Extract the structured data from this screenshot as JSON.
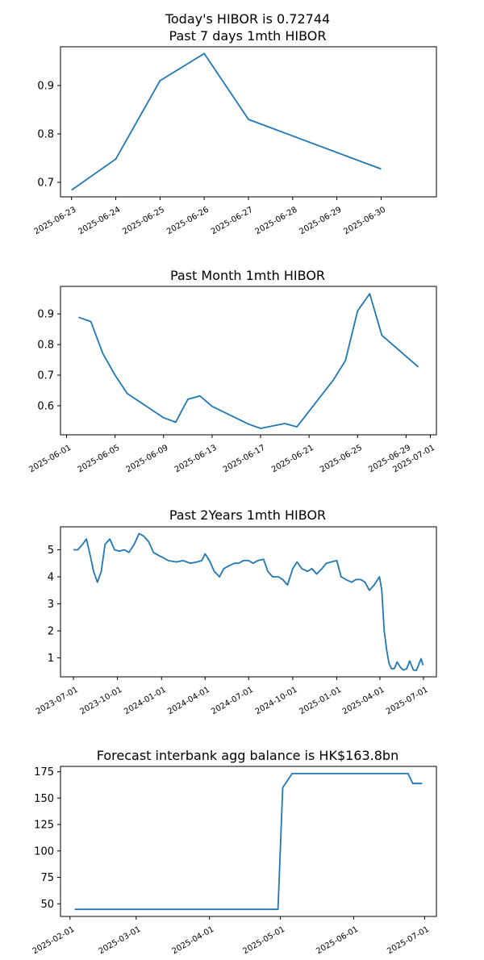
{
  "colors": {
    "line": "#1f77b4"
  },
  "chart_data": [
    {
      "type": "line",
      "title": "Today's HIBOR is 0.72744\nPast 7 days 1mth HIBOR",
      "x": [
        "2025-06-23",
        "2025-06-24",
        "2025-06-25",
        "2025-06-26",
        "2025-06-27",
        "2025-06-30"
      ],
      "values": [
        0.684,
        0.748,
        0.91,
        0.966,
        0.83,
        0.72744
      ],
      "xlim": [
        "2025-06-22T18:00",
        "2025-07-01T06:00"
      ],
      "ylim": [
        0.67,
        0.98
      ],
      "yticks": [
        0.7,
        0.8,
        0.9
      ],
      "ytick_labels": [
        "0.7",
        "0.8",
        "0.9"
      ],
      "xticks": [
        "2025-06-23",
        "2025-06-24",
        "2025-06-25",
        "2025-06-26",
        "2025-06-27",
        "2025-06-28",
        "2025-06-29",
        "2025-06-30"
      ],
      "xlabel": "",
      "ylabel": "",
      "grid": false
    },
    {
      "type": "line",
      "title": "Past Month 1mth HIBOR",
      "x": [
        "2025-06-02",
        "2025-06-03",
        "2025-06-04",
        "2025-06-05",
        "2025-06-06",
        "2025-06-09",
        "2025-06-10",
        "2025-06-11",
        "2025-06-12",
        "2025-06-13",
        "2025-06-16",
        "2025-06-17",
        "2025-06-19",
        "2025-06-20",
        "2025-06-23",
        "2025-06-24",
        "2025-06-25",
        "2025-06-26",
        "2025-06-27",
        "2025-06-30"
      ],
      "values": [
        0.889,
        0.875,
        0.77,
        0.7,
        0.64,
        0.561,
        0.546,
        0.621,
        0.632,
        0.598,
        0.54,
        0.526,
        0.542,
        0.531,
        0.684,
        0.748,
        0.91,
        0.966,
        0.83,
        0.727
      ],
      "xlim": [
        "2025-05-31T12:00",
        "2025-07-01T12:00"
      ],
      "ylim": [
        0.505,
        0.99
      ],
      "yticks": [
        0.6,
        0.7,
        0.8,
        0.9
      ],
      "ytick_labels": [
        "0.6",
        "0.7",
        "0.8",
        "0.9"
      ],
      "xticks": [
        "2025-06-01",
        "2025-06-05",
        "2025-06-09",
        "2025-06-13",
        "2025-06-17",
        "2025-06-21",
        "2025-06-25",
        "2025-06-29",
        "2025-07-01"
      ],
      "xlabel": "",
      "ylabel": "",
      "grid": false
    },
    {
      "type": "line",
      "title": "Past 2Years 1mth HIBOR",
      "x": [
        "2023-07-01",
        "2023-07-10",
        "2023-07-20",
        "2023-07-28",
        "2023-08-05",
        "2023-08-12",
        "2023-08-20",
        "2023-08-28",
        "2023-09-05",
        "2023-09-15",
        "2023-09-25",
        "2023-10-05",
        "2023-10-15",
        "2023-10-25",
        "2023-11-05",
        "2023-11-15",
        "2023-11-25",
        "2023-12-05",
        "2023-12-15",
        "2023-12-25",
        "2024-01-05",
        "2024-01-15",
        "2024-02-01",
        "2024-02-15",
        "2024-03-01",
        "2024-03-15",
        "2024-03-25",
        "2024-04-01",
        "2024-04-10",
        "2024-04-20",
        "2024-05-01",
        "2024-05-10",
        "2024-05-20",
        "2024-06-01",
        "2024-06-10",
        "2024-06-20",
        "2024-07-01",
        "2024-07-10",
        "2024-07-20",
        "2024-08-01",
        "2024-08-10",
        "2024-08-20",
        "2024-09-01",
        "2024-09-10",
        "2024-09-20",
        "2024-10-01",
        "2024-10-10",
        "2024-10-20",
        "2024-11-01",
        "2024-11-10",
        "2024-11-20",
        "2024-12-01",
        "2024-12-10",
        "2024-12-20",
        "2025-01-01",
        "2025-01-10",
        "2025-01-20",
        "2025-02-01",
        "2025-02-10",
        "2025-02-20",
        "2025-03-01",
        "2025-03-10",
        "2025-03-20",
        "2025-03-31",
        "2025-04-05",
        "2025-04-10",
        "2025-04-15",
        "2025-04-20",
        "2025-04-25",
        "2025-05-01",
        "2025-05-07",
        "2025-05-14",
        "2025-05-20",
        "2025-05-27",
        "2025-06-02",
        "2025-06-10",
        "2025-06-16",
        "2025-06-20",
        "2025-06-26",
        "2025-06-30"
      ],
      "values": [
        5.0,
        5.0,
        5.2,
        5.4,
        4.8,
        4.2,
        3.8,
        4.2,
        5.2,
        5.4,
        5.0,
        4.95,
        5.0,
        4.9,
        5.2,
        5.6,
        5.5,
        5.3,
        4.9,
        4.8,
        4.7,
        4.6,
        4.55,
        4.6,
        4.5,
        4.55,
        4.6,
        4.85,
        4.6,
        4.2,
        4.0,
        4.3,
        4.4,
        4.5,
        4.5,
        4.6,
        4.6,
        4.5,
        4.6,
        4.65,
        4.2,
        4.0,
        4.0,
        3.9,
        3.7,
        4.3,
        4.55,
        4.3,
        4.2,
        4.3,
        4.1,
        4.3,
        4.5,
        4.55,
        4.6,
        4.0,
        3.9,
        3.8,
        3.9,
        3.9,
        3.8,
        3.5,
        3.7,
        4.0,
        3.5,
        2.0,
        1.3,
        0.8,
        0.6,
        0.6,
        0.85,
        0.65,
        0.55,
        0.6,
        0.89,
        0.55,
        0.54,
        0.7,
        0.97,
        0.73
      ],
      "xlim": [
        "2023-06-04",
        "2025-07-28"
      ],
      "ylim": [
        0.3,
        5.85
      ],
      "yticks": [
        1,
        2,
        3,
        4,
        5
      ],
      "ytick_labels": [
        "1",
        "2",
        "3",
        "4",
        "5"
      ],
      "xticks": [
        "2023-07-01",
        "2023-10-01",
        "2024-01-01",
        "2024-04-01",
        "2024-07-01",
        "2024-10-01",
        "2025-01-01",
        "2025-04-01",
        "2025-07-01"
      ],
      "xlabel": "",
      "ylabel": "",
      "grid": false
    },
    {
      "type": "line",
      "title": "Forecast interbank agg balance is HK$163.8bn",
      "x": [
        "2025-02-03",
        "2025-04-30",
        "2025-05-02",
        "2025-05-06",
        "2025-06-24",
        "2025-06-26",
        "2025-06-30"
      ],
      "values": [
        44.7,
        44.7,
        160,
        173.2,
        173.2,
        163.8,
        163.8
      ],
      "xlim": [
        "2025-01-28",
        "2025-07-06"
      ],
      "ylim": [
        38,
        180
      ],
      "yticks": [
        50,
        75,
        100,
        125,
        150,
        175
      ],
      "ytick_labels": [
        "50",
        "75",
        "100",
        "125",
        "150",
        "175"
      ],
      "xticks": [
        "2025-02-01",
        "2025-03-01",
        "2025-04-01",
        "2025-05-01",
        "2025-06-01",
        "2025-07-01"
      ],
      "xlabel": "",
      "ylabel": "",
      "grid": false
    }
  ]
}
